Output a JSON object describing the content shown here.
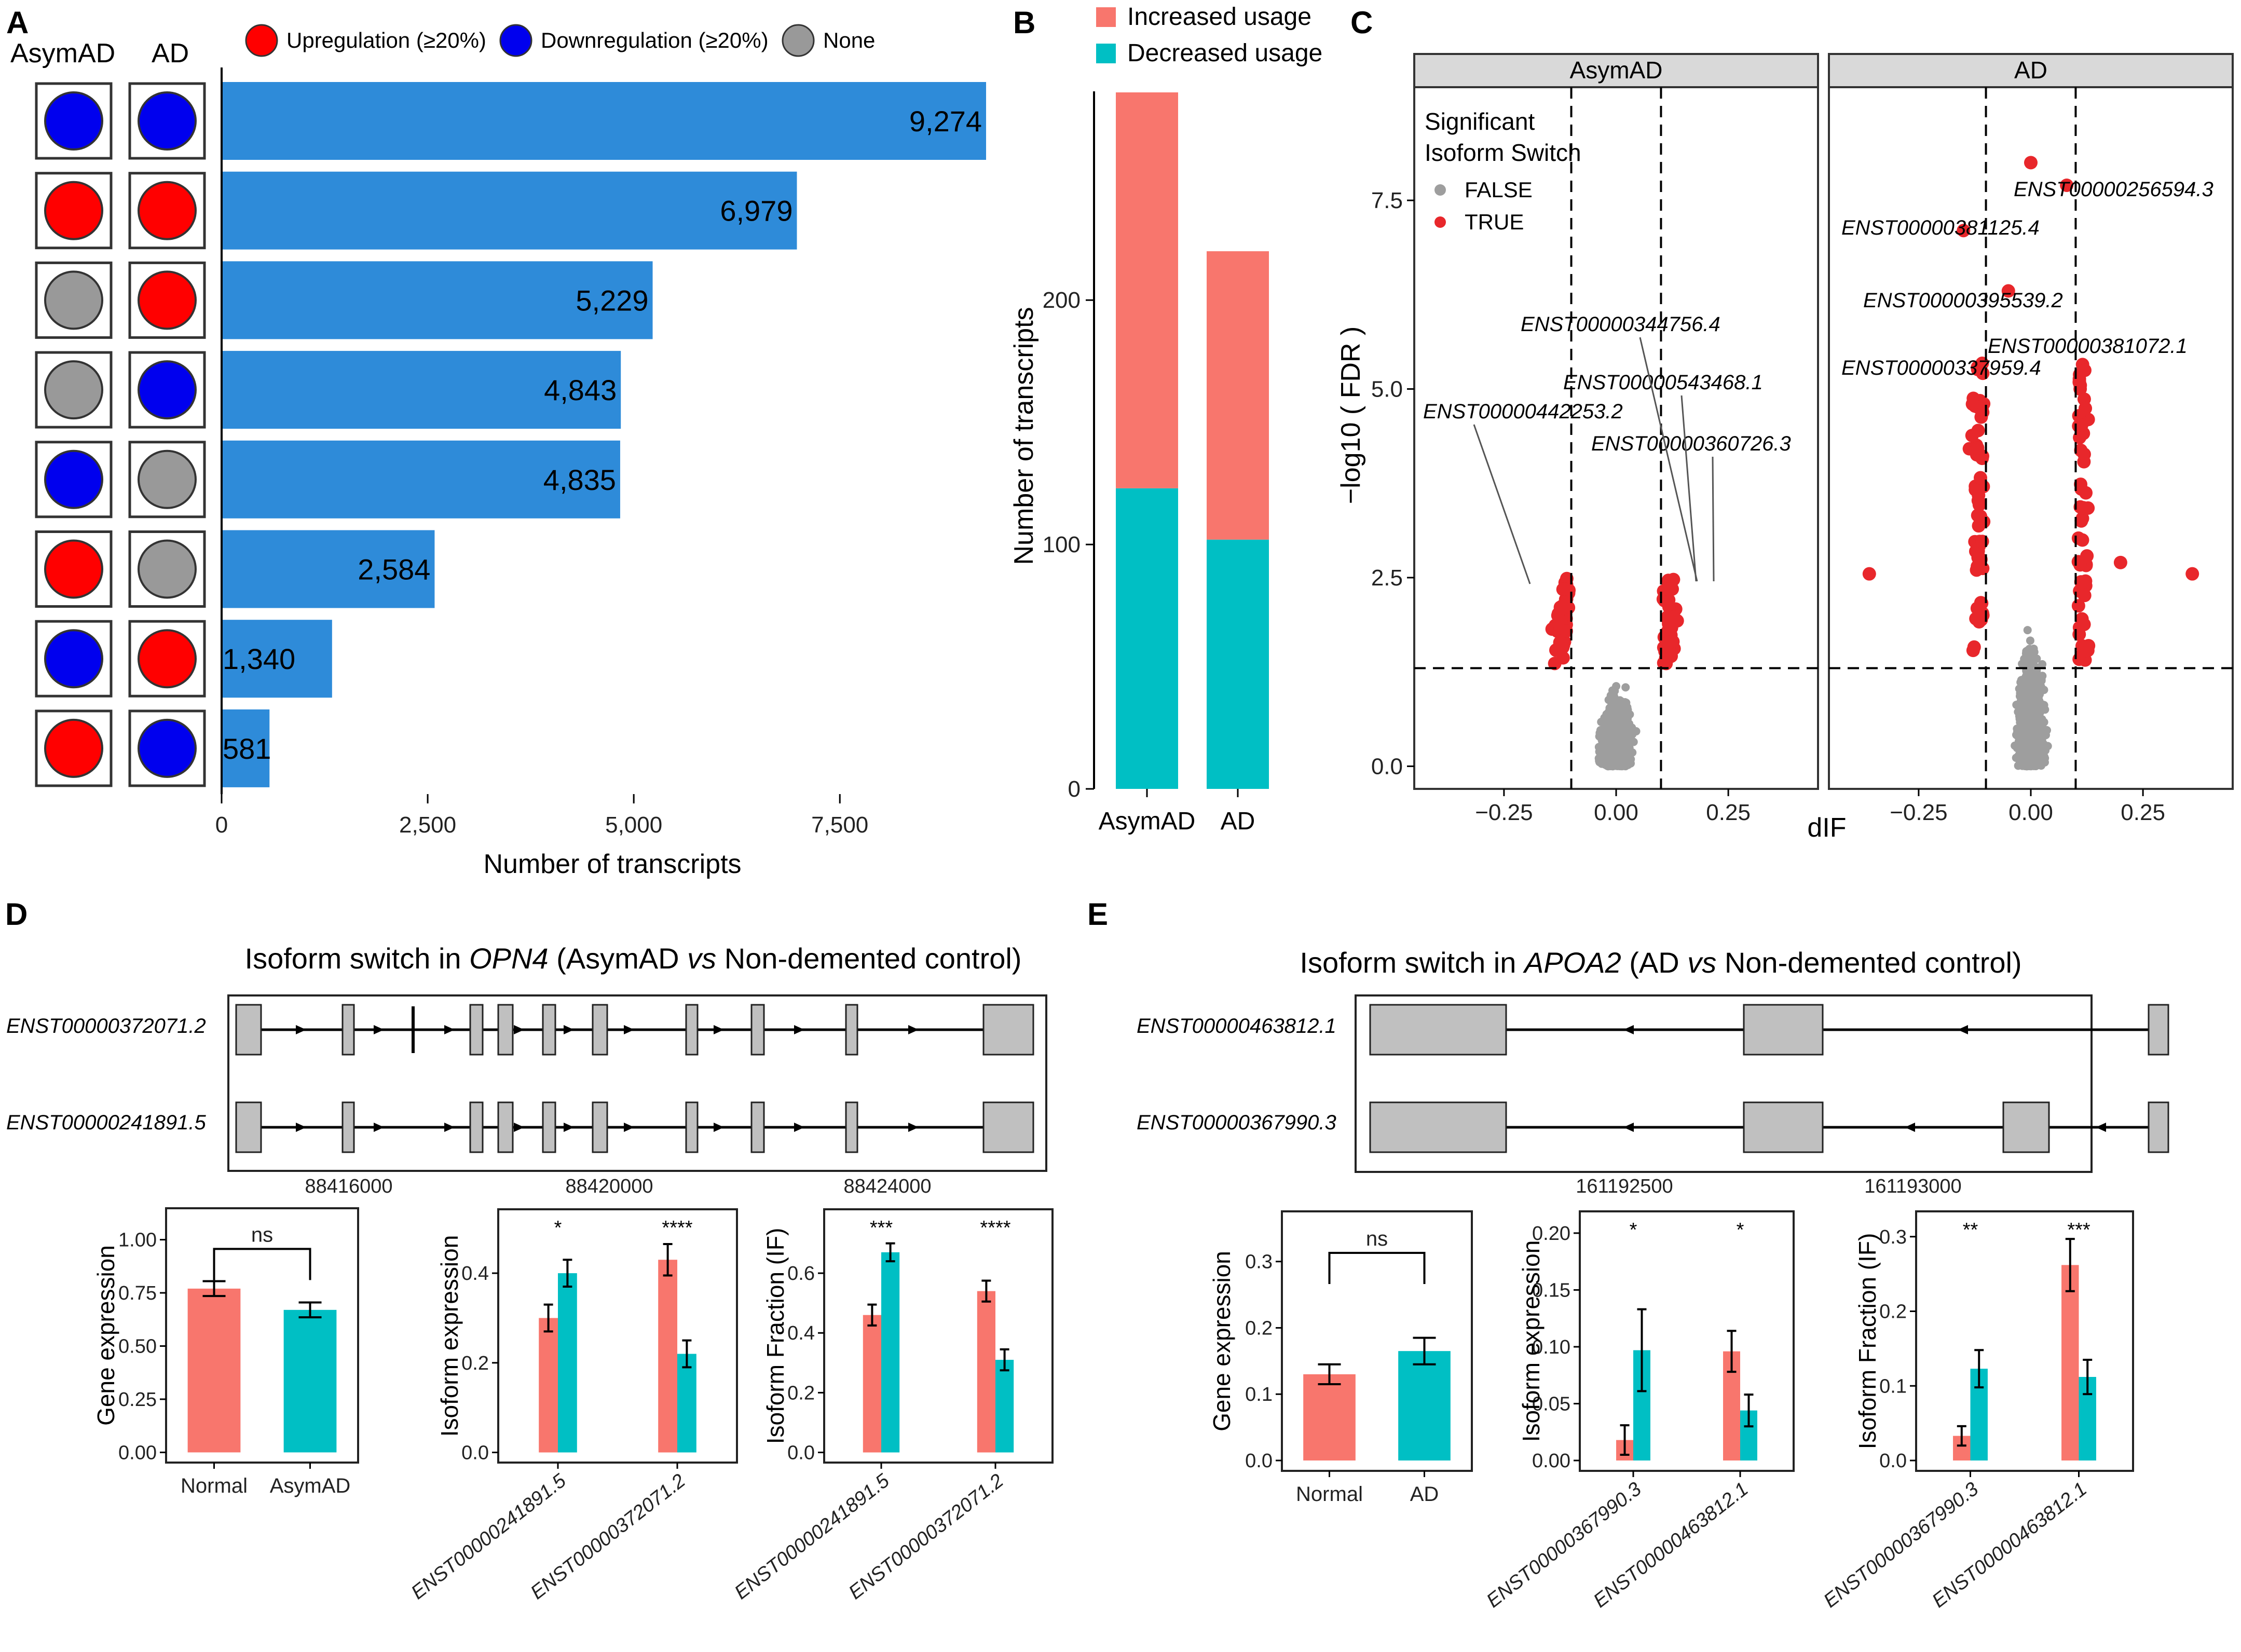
{
  "colors": {
    "bar_blue": "#2E8BD9",
    "up_red": "#FF0000",
    "down_blue": "#0000EE",
    "none_gray": "#999999",
    "increased": "#F8766D",
    "decreased": "#00BFC4",
    "sig_true": "#E8272B",
    "sig_false": "#9E9E9E",
    "exon_gray": "#C0C0C0",
    "strip_gray": "#D9D9D9"
  },
  "panel_labels": [
    "A",
    "B",
    "C",
    "D",
    "E"
  ],
  "panelA": {
    "col_headers": [
      "AsymAD",
      "AD"
    ],
    "legend": [
      {
        "label": "Upregulation (≥20%)",
        "color": "#FF0000"
      },
      {
        "label": "Downregulation (≥20%)",
        "color": "#0000EE"
      },
      {
        "label": "None",
        "color": "#999999"
      }
    ],
    "xlabel": "Number of transcripts"
  },
  "panelB": {
    "legend": [
      "Increased usage",
      "Decreased usage"
    ],
    "ylabel": "Number of transcripts"
  },
  "panelC": {
    "facets": [
      "AsymAD",
      "AD"
    ],
    "legend_title_1": "Significant",
    "legend_title_2": "Isoform Switch",
    "legend_items": [
      "FALSE",
      "TRUE"
    ],
    "ylabel": "−log10 ( FDR )",
    "xlabel": "dIF",
    "labels_asymad": [
      "ENST00000344756.4",
      "ENST00000543468.1",
      "ENST00000442253.2",
      "ENST00000360726.3"
    ],
    "labels_ad": [
      "ENST00000256594.3",
      "ENST00000381125.4",
      "ENST00000395539.2",
      "ENST00000381072.1",
      "ENST00000337959.4"
    ]
  },
  "panelD": {
    "title_pre": "Isoform switch in ",
    "gene": "OPN4",
    "title_mid": " (AsymAD ",
    "vs": "vs",
    "title_post": " Non-demented control)",
    "isoforms": [
      "ENST00000372071.2",
      "ENST00000241891.5"
    ],
    "coords": [
      "88416000",
      "88420000",
      "88424000"
    ],
    "gene_expr_label": "Gene expression",
    "iso_expr_label": "Isoform expression",
    "iso_frac_label": "Isoform Fraction (IF)",
    "ns": "ns"
  },
  "panelE": {
    "title_pre": "Isoform switch in ",
    "gene": "APOA2",
    "title_mid": " (AD ",
    "vs": "vs",
    "title_post": " Non-demented control)",
    "isoforms": [
      "ENST00000463812.1",
      "ENST00000367990.3"
    ],
    "coords": [
      "161192500",
      "161193000"
    ],
    "gene_expr_label": "Gene expression",
    "iso_expr_label": "Isoform expression",
    "iso_frac_label": "Isoform Fraction (IF)",
    "ns": "ns"
  },
  "chart_data": [
    {
      "id": "A",
      "type": "bar",
      "orientation": "horizontal",
      "categories": [
        "Down/Down",
        "Up/Up",
        "None/Up",
        "None/Down",
        "Down/None",
        "Up/None",
        "Down/Up",
        "Up/Down"
      ],
      "asymad_status": [
        "down",
        "up",
        "none",
        "none",
        "down",
        "up",
        "down",
        "up"
      ],
      "ad_status": [
        "down",
        "up",
        "up",
        "down",
        "none",
        "none",
        "up",
        "down"
      ],
      "values": [
        9274,
        6979,
        5229,
        4843,
        4835,
        2584,
        1340,
        581
      ],
      "value_labels": [
        "9,274",
        "6,979",
        "5,229",
        "4,843",
        "4,835",
        "2,584",
        "1,340",
        "581"
      ],
      "xticks": [
        "0",
        "2,500",
        "5,000",
        "7,500"
      ],
      "xtick_values": [
        0,
        2500,
        5000,
        7500
      ],
      "xlim": [
        0,
        9274
      ],
      "xlabel": "Number of transcripts"
    },
    {
      "id": "B",
      "type": "bar",
      "stacked": true,
      "categories": [
        "AsymAD",
        "AD"
      ],
      "series": [
        {
          "name": "Decreased usage",
          "values": [
            123,
            102
          ]
        },
        {
          "name": "Increased usage",
          "values": [
            162,
            118
          ]
        }
      ],
      "yticks": [
        "0",
        "100",
        "200"
      ],
      "ytick_values": [
        0,
        100,
        200
      ],
      "ylim": [
        0,
        285
      ],
      "ylabel": "Number of transcripts"
    },
    {
      "id": "C",
      "type": "scatter",
      "facets": [
        "AsymAD",
        "AD"
      ],
      "xlim": [
        -0.45,
        0.45
      ],
      "ylim": [
        -0.3,
        9.0
      ],
      "xticks": [
        "−0.25",
        "0.00",
        "0.25"
      ],
      "xtick_values": [
        -0.25,
        0,
        0.25
      ],
      "yticks": [
        "0.0",
        "2.5",
        "5.0",
        "7.5"
      ],
      "ytick_values": [
        0,
        2.5,
        5,
        7.5
      ],
      "vlines": [
        -0.1,
        0.1
      ],
      "hline": 1.3,
      "xlabel": "dIF",
      "ylabel": "−log10 ( FDR )",
      "max_fdr": {
        "AsymAD": 2.5,
        "AD": 8.0
      }
    },
    {
      "id": "D-gene",
      "type": "bar",
      "categories": [
        "Normal",
        "AsymAD"
      ],
      "values": [
        0.77,
        0.67
      ],
      "errors": [
        0.035,
        0.035
      ],
      "yticks": [
        "0.00",
        "0.25",
        "0.50",
        "0.75",
        "1.00"
      ],
      "ytick_values": [
        0,
        0.25,
        0.5,
        0.75,
        1.0
      ],
      "ylim": [
        0,
        1.1
      ],
      "ylabel": "Gene expression",
      "annotation": "ns"
    },
    {
      "id": "D-iso",
      "type": "bar",
      "categories": [
        "ENST00000241891.5",
        "ENST00000372071.2"
      ],
      "series": [
        {
          "name": "Normal",
          "values": [
            0.3,
            0.43
          ],
          "errors": [
            0.03,
            0.035
          ]
        },
        {
          "name": "AsymAD",
          "values": [
            0.4,
            0.22
          ],
          "errors": [
            0.03,
            0.03
          ]
        }
      ],
      "significance": [
        "*",
        "****"
      ],
      "yticks": [
        "0.0",
        "0.2",
        "0.4"
      ],
      "ytick_values": [
        0,
        0.2,
        0.4
      ],
      "ylim": [
        0,
        0.52
      ],
      "ylabel": "Isoform expression"
    },
    {
      "id": "D-if",
      "type": "bar",
      "categories": [
        "ENST00000241891.5",
        "ENST00000372071.2"
      ],
      "series": [
        {
          "name": "Normal",
          "values": [
            0.46,
            0.54
          ],
          "errors": [
            0.035,
            0.035
          ]
        },
        {
          "name": "AsymAD",
          "values": [
            0.67,
            0.31
          ],
          "errors": [
            0.03,
            0.035
          ]
        }
      ],
      "significance": [
        "***",
        "****"
      ],
      "yticks": [
        "0.0",
        "0.2",
        "0.4",
        "0.6"
      ],
      "ytick_values": [
        0,
        0.2,
        0.4,
        0.6
      ],
      "ylim": [
        0,
        0.78
      ],
      "ylabel": "Isoform Fraction (IF)"
    },
    {
      "id": "E-gene",
      "type": "bar",
      "categories": [
        "Normal",
        "AD"
      ],
      "values": [
        0.13,
        0.165
      ],
      "errors": [
        0.015,
        0.02
      ],
      "yticks": [
        "0.0",
        "0.1",
        "0.2",
        "0.3"
      ],
      "ytick_values": [
        0,
        0.1,
        0.2,
        0.3
      ],
      "ylim": [
        0,
        0.36
      ],
      "ylabel": "Gene expression",
      "annotation": "ns"
    },
    {
      "id": "E-iso",
      "type": "bar",
      "categories": [
        "ENST00000367990.3",
        "ENST00000463812.1"
      ],
      "series": [
        {
          "name": "Normal",
          "values": [
            0.018,
            0.096
          ],
          "errors": [
            0.013,
            0.018
          ]
        },
        {
          "name": "AD",
          "values": [
            0.097,
            0.044
          ],
          "errors": [
            0.036,
            0.014
          ]
        }
      ],
      "significance": [
        "*",
        "*"
      ],
      "yticks": [
        "0.00",
        "0.05",
        "0.10",
        "0.15",
        "0.20"
      ],
      "ytick_values": [
        0,
        0.05,
        0.1,
        0.15,
        0.2
      ],
      "ylim": [
        0,
        0.21
      ],
      "ylabel": "Isoform expression"
    },
    {
      "id": "E-if",
      "type": "bar",
      "categories": [
        "ENST00000367990.3",
        "ENST00000463812.1"
      ],
      "series": [
        {
          "name": "Normal",
          "values": [
            0.033,
            0.262
          ],
          "errors": [
            0.013,
            0.035
          ]
        },
        {
          "name": "AD",
          "values": [
            0.123,
            0.112
          ],
          "errors": [
            0.025,
            0.023
          ]
        }
      ],
      "significance": [
        "**",
        "***"
      ],
      "yticks": [
        "0.0",
        "0.1",
        "0.2",
        "0.3"
      ],
      "ytick_values": [
        0,
        0.1,
        0.2,
        0.3
      ],
      "ylim": [
        0,
        0.32
      ],
      "ylabel": "Isoform Fraction (IF)"
    }
  ]
}
